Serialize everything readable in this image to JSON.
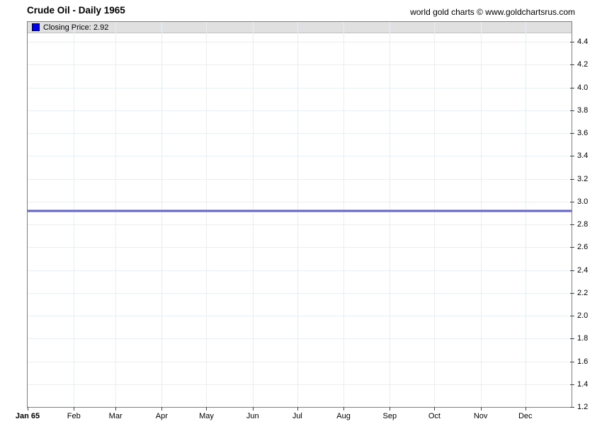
{
  "header": {
    "title": "Crude Oil - Daily 1965",
    "copyright": "world gold charts © www.goldchartsrus.com"
  },
  "legend": {
    "label": "Closing Price: 2.92"
  },
  "chart_data": {
    "type": "line",
    "title": "Crude Oil - Daily 1965",
    "x_axis": {
      "unit": "month",
      "tick_labels": [
        "Jan 65",
        "Feb",
        "Mar",
        "Apr",
        "May",
        "Jun",
        "Jul",
        "Aug",
        "Sep",
        "Oct",
        "Nov",
        "Dec"
      ],
      "month_start_day_of_year": [
        0,
        31,
        59,
        90,
        120,
        151,
        181,
        212,
        243,
        273,
        304,
        334
      ],
      "days_in_year": 365
    },
    "y_axis": {
      "side": "right",
      "min": 1.2,
      "max_tick": 4.4,
      "tick_step": 0.2,
      "tick_labels": [
        "4.4",
        "4.2",
        "4.0",
        "3.8",
        "3.6",
        "3.4",
        "3.2",
        "3.0",
        "2.8",
        "2.6",
        "2.4",
        "2.2",
        "2.0",
        "1.8",
        "1.6",
        "1.4",
        "1.2"
      ]
    },
    "series": [
      {
        "name": "Closing Price",
        "shape": "constant",
        "value": 2.92,
        "color": "#6666cc"
      }
    ],
    "grid": true,
    "legend_position": "top-left",
    "colors": {
      "grid": "#e7eef6",
      "border": "#7f7f7f",
      "legend_strip_bg": "#e0e0e0",
      "legend_marker": "#0000e0",
      "tick": "#404040",
      "line": "#6666cc",
      "text": "#000000"
    }
  }
}
